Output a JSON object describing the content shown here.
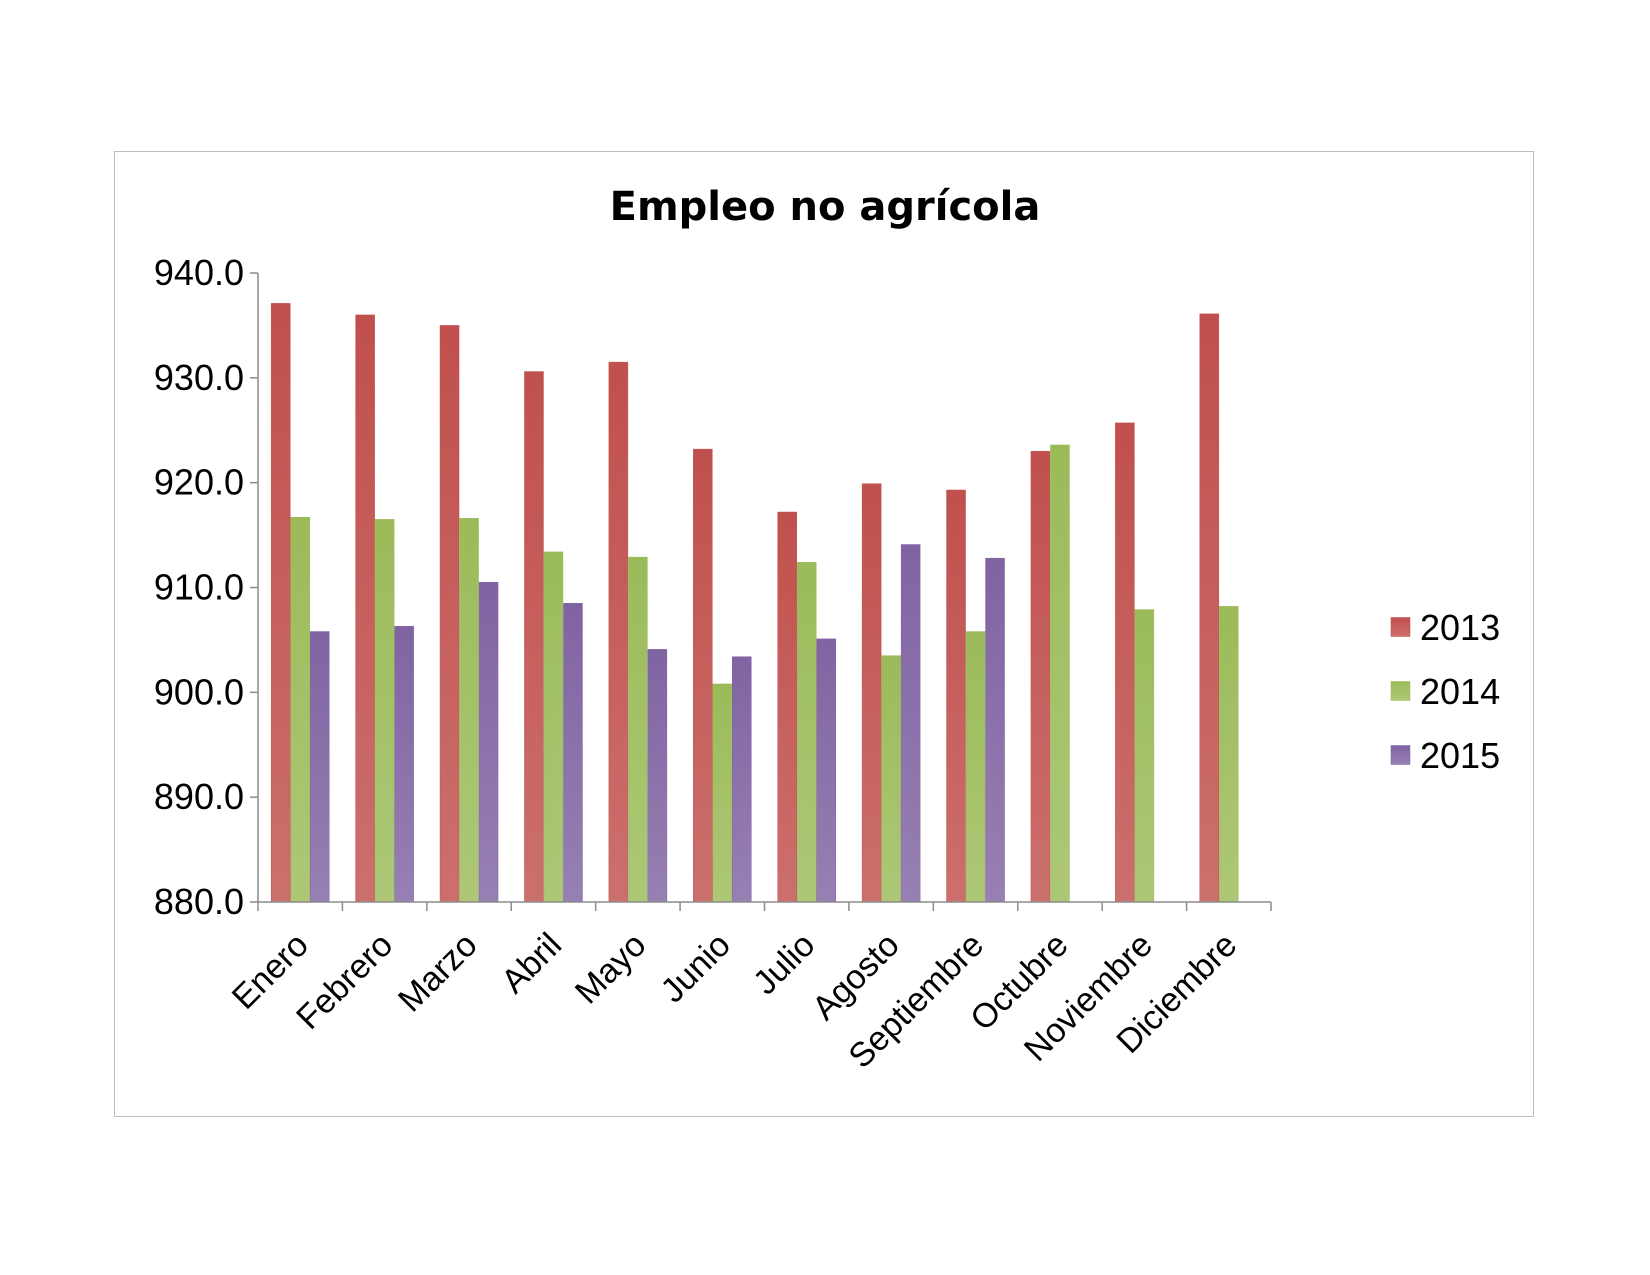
{
  "chart_data": {
    "type": "bar",
    "title": "Empleo no agrícola",
    "xlabel": "",
    "ylabel": "",
    "ylim": [
      880,
      940
    ],
    "yticks": [
      880,
      890,
      900,
      910,
      920,
      930,
      940
    ],
    "ytick_labels": [
      "880.0",
      "890.0",
      "900.0",
      "910.0",
      "920.0",
      "930.0",
      "940.0"
    ],
    "categories": [
      "Enero",
      "Febrero",
      "Marzo",
      "Abril",
      "Mayo",
      "Junio",
      "Julio",
      "Agosto",
      "Septiembre",
      "Octubre",
      "Noviembre",
      "Diciembre"
    ],
    "series": [
      {
        "name": "2013",
        "color": "#c0504d",
        "values": [
          937.1,
          936.0,
          935.0,
          930.6,
          931.5,
          923.2,
          917.2,
          919.9,
          919.3,
          923.0,
          925.7,
          936.1
        ]
      },
      {
        "name": "2014",
        "color": "#9bbb59",
        "values": [
          916.7,
          916.5,
          916.6,
          913.4,
          912.9,
          900.8,
          912.4,
          903.5,
          905.8,
          923.6,
          907.9,
          908.2
        ]
      },
      {
        "name": "2015",
        "color": "#8064a2",
        "values": [
          905.8,
          906.3,
          910.5,
          908.5,
          904.1,
          903.4,
          905.1,
          914.1,
          912.8,
          null,
          null,
          null
        ]
      }
    ],
    "grid": false,
    "legend_position": "right"
  }
}
